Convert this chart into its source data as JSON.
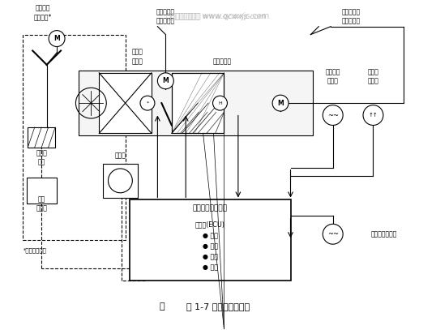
{
  "title": "图 1-7 自动控制工作图",
  "watermark_top": "汽车维修技术网 www.qcwxjs.com",
  "bg_color": "#ffffff",
  "fig_width": 5.38,
  "fig_height": 4.07,
  "dpi": 100,
  "labels": {
    "intake_servo": "进气控制\n伺服电机*",
    "air_mix_servo": "空气混合控\n制伺服电机",
    "airflow_servo": "气流方式控\n制伺服电机",
    "evap_sensor": "蒸发器\n传感器",
    "water_temp": "水温传感器",
    "blower_motor": "鼓风机\n电机",
    "compressor": "压缩机",
    "power_transistor": "功率\n晶体管",
    "ecu_box_title": "自动空调器放大器",
    "ecu_inner": "微电脑(ECU)\n● 计算\n● 存储\n● 判断\n● 定时",
    "interior_temp": "车内气温\n传感器",
    "solar_sensor": "太阳能\n传感器",
    "exterior_temp": "车外气温传感器",
    "footnote": "*仅限某些型号"
  }
}
